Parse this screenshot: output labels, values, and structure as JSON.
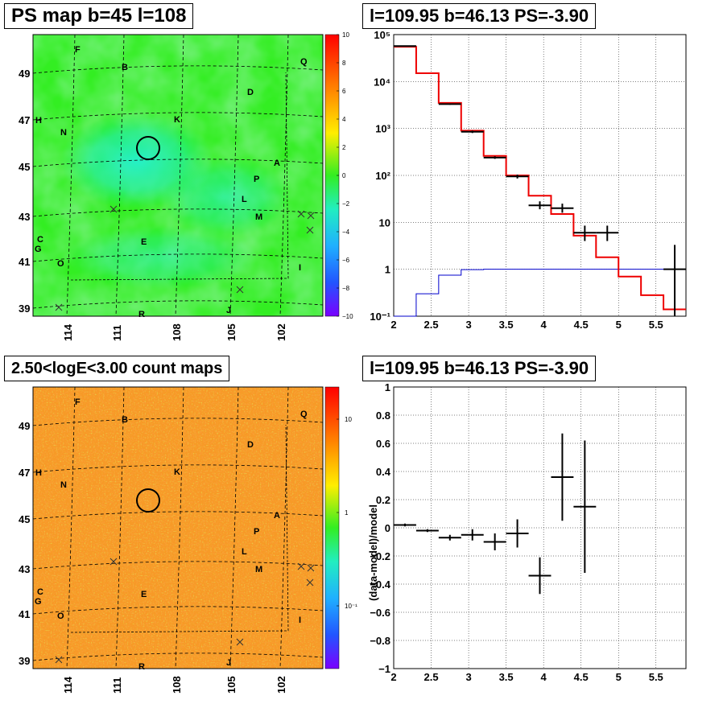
{
  "panels": {
    "tl_title": "PS map b=45 l=108",
    "tr_title": "l=109.95 b=46.13 PS=-3.90",
    "bl_title": "2.50<logE<3.00 count maps",
    "br_title": "l=109.95 b=46.13 PS=-3.90"
  },
  "maps": {
    "lon_ticks": [
      "114",
      "111",
      "108",
      "105",
      "102"
    ],
    "lat_ticks": [
      "49",
      "47",
      "45",
      "43",
      "41",
      "39"
    ],
    "region_labels": [
      "F",
      "B",
      "Q",
      "D",
      "H",
      "N",
      "K",
      "A",
      "P",
      "L",
      "M",
      "C",
      "G",
      "E",
      "O",
      "I",
      "R",
      "J"
    ],
    "ps_colorbar": {
      "ticks": [
        "10",
        "8",
        "6",
        "4",
        "2",
        "0",
        "−2",
        "−4",
        "−6",
        "−8",
        "−10"
      ],
      "min": -10,
      "max": 10
    },
    "count_colorbar": {
      "ticks": [
        "10",
        "1",
        "10⁻¹"
      ]
    },
    "colors": {
      "green": "#33ee22",
      "cyan": "#22eec0",
      "orange": "#f9a022",
      "circle": "#000000"
    }
  },
  "chart_data": [
    {
      "type": "bar",
      "name": "spectrum",
      "yscale": "log",
      "xlim": [
        2,
        5.9
      ],
      "ylim": [
        0.1,
        100000
      ],
      "x_ticks": [
        "2",
        "2.5",
        "3",
        "3.5",
        "4",
        "4.5",
        "5",
        "5.5"
      ],
      "y_ticks": [
        "10⁵",
        "10⁴",
        "10³",
        "10²",
        "10",
        "1",
        "10⁻¹"
      ],
      "model_bins": [
        2.0,
        2.3,
        2.6,
        2.9,
        3.2,
        3.5,
        3.8,
        4.1,
        4.4,
        4.7,
        5.0,
        5.3,
        5.6,
        5.9
      ],
      "model_values": [
        55000,
        15000,
        3500,
        900,
        260,
        100,
        37,
        15,
        5.2,
        1.8,
        0.7,
        0.28,
        0.14
      ],
      "background_values": [
        0.1,
        0.3,
        0.75,
        0.98,
        1.0,
        1.0,
        1.0,
        1.0,
        1.0,
        1.0,
        1.0,
        1.0,
        1.0
      ],
      "data_points": [
        {
          "x": 2.15,
          "y": 57000,
          "xerr": 0.15,
          "ylo": 56000,
          "yhi": 58000
        },
        {
          "x": 2.75,
          "y": 3300,
          "xerr": 0.15,
          "ylo": 3200,
          "yhi": 3400
        },
        {
          "x": 3.05,
          "y": 850,
          "xerr": 0.15,
          "ylo": 800,
          "yhi": 900
        },
        {
          "x": 3.35,
          "y": 240,
          "xerr": 0.15,
          "ylo": 225,
          "yhi": 255
        },
        {
          "x": 3.65,
          "y": 95,
          "xerr": 0.15,
          "ylo": 86,
          "yhi": 104
        },
        {
          "x": 3.95,
          "y": 23,
          "xerr": 0.15,
          "ylo": 19,
          "yhi": 28
        },
        {
          "x": 4.25,
          "y": 20,
          "xerr": 0.15,
          "ylo": 16,
          "yhi": 25
        },
        {
          "x": 4.55,
          "y": 6,
          "xerr": 0.15,
          "ylo": 4,
          "yhi": 8.5
        },
        {
          "x": 4.85,
          "y": 6,
          "xerr": 0.15,
          "ylo": 4,
          "yhi": 8.5
        },
        {
          "x": 5.75,
          "y": 1,
          "xerr": 0.15,
          "ylo": 0.1,
          "yhi": 3.3
        }
      ]
    },
    {
      "type": "scatter",
      "name": "residual",
      "ylabel": "(data-model)/model",
      "xlim": [
        2,
        5.9
      ],
      "ylim": [
        -1,
        1
      ],
      "x_ticks": [
        "2",
        "2.5",
        "3",
        "3.5",
        "4",
        "4.5",
        "5",
        "5.5"
      ],
      "y_ticks": [
        "1",
        "0.8",
        "0.6",
        "0.4",
        "0.2",
        "0",
        "−0.2",
        "−0.4",
        "−0.6",
        "−0.8",
        "−1"
      ],
      "data_points": [
        {
          "x": 2.15,
          "y": 0.02,
          "xerr": 0.15,
          "yerr": 0.01
        },
        {
          "x": 2.45,
          "y": -0.02,
          "xerr": 0.15,
          "yerr": 0.01
        },
        {
          "x": 2.75,
          "y": -0.07,
          "xerr": 0.15,
          "yerr": 0.02
        },
        {
          "x": 3.05,
          "y": -0.05,
          "xerr": 0.15,
          "yerr": 0.04
        },
        {
          "x": 3.35,
          "y": -0.1,
          "xerr": 0.15,
          "yerr": 0.06
        },
        {
          "x": 3.65,
          "y": -0.04,
          "xerr": 0.15,
          "yerr": 0.1
        },
        {
          "x": 3.95,
          "y": -0.34,
          "xerr": 0.15,
          "yerr": 0.13
        },
        {
          "x": 4.25,
          "y": 0.36,
          "xerr": 0.15,
          "yerr": 0.31
        },
        {
          "x": 4.55,
          "y": 0.15,
          "xerr": 0.15,
          "yerr": 0.47
        }
      ]
    }
  ]
}
